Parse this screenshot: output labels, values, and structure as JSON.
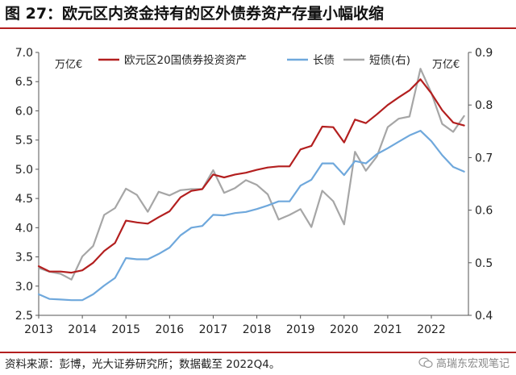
{
  "figure": {
    "title": "图 27：欧元区内资金持有的区外债券资产存量小幅收缩",
    "source": "资料来源：彭博，光大证券研究所；数据截至 2022Q4。",
    "watermark": "高瑞东宏观笔记"
  },
  "colors": {
    "rule": "#b31f1f",
    "series_total": "#b31f1f",
    "series_long": "#6fa8dc",
    "series_short": "#a6a6a6"
  },
  "chart_data": {
    "type": "line",
    "left_unit": "万亿€",
    "right_unit": "万亿€",
    "legend_position": "top",
    "grid": false,
    "ylim_left": [
      2.5,
      7.0
    ],
    "ylim_right": [
      0.4,
      0.9
    ],
    "xlim": [
      2013.0,
      2022.85
    ],
    "yticks_left": [
      "7.0",
      "6.5",
      "6.0",
      "5.5",
      "5.0",
      "4.5",
      "4.0",
      "3.5",
      "3.0",
      "2.5"
    ],
    "yticks_right": [
      "0.9",
      "0.8",
      "0.7",
      "0.6",
      "0.5",
      "0.4"
    ],
    "xticks": [
      "2013",
      "2014",
      "2015",
      "2016",
      "2017",
      "2018",
      "2019",
      "2020",
      "2021",
      "2022"
    ],
    "x": [
      2013.0,
      2013.25,
      2013.5,
      2013.75,
      2014.0,
      2014.25,
      2014.5,
      2014.75,
      2015.0,
      2015.25,
      2015.5,
      2015.75,
      2016.0,
      2016.25,
      2016.5,
      2016.75,
      2017.0,
      2017.25,
      2017.5,
      2017.75,
      2018.0,
      2018.25,
      2018.5,
      2018.75,
      2019.0,
      2019.25,
      2019.5,
      2019.75,
      2020.0,
      2020.25,
      2020.5,
      2020.75,
      2021.0,
      2021.25,
      2021.5,
      2021.75,
      2022.0,
      2022.25,
      2022.5,
      2022.75
    ],
    "series": [
      {
        "name": "欧元区20国债券投资资产",
        "axis": "left",
        "values": [
          3.34,
          3.25,
          3.25,
          3.23,
          3.27,
          3.4,
          3.6,
          3.74,
          4.12,
          4.09,
          4.07,
          4.18,
          4.28,
          4.52,
          4.63,
          4.66,
          4.91,
          4.86,
          4.91,
          4.94,
          4.99,
          5.03,
          5.05,
          5.05,
          5.34,
          5.4,
          5.73,
          5.72,
          5.46,
          5.85,
          5.79,
          5.94,
          6.1,
          6.23,
          6.35,
          6.54,
          6.3,
          6.01,
          5.8,
          5.75
        ]
      },
      {
        "name": "长债",
        "axis": "left",
        "values": [
          2.86,
          2.78,
          2.77,
          2.76,
          2.76,
          2.86,
          3.01,
          3.14,
          3.48,
          3.46,
          3.46,
          3.55,
          3.66,
          3.87,
          4.0,
          4.03,
          4.22,
          4.21,
          4.25,
          4.27,
          4.32,
          4.38,
          4.45,
          4.45,
          4.72,
          4.82,
          5.1,
          5.1,
          4.9,
          5.14,
          5.1,
          5.26,
          5.36,
          5.47,
          5.58,
          5.66,
          5.48,
          5.24,
          5.04,
          4.96
        ]
      },
      {
        "name": "短债(右)",
        "axis": "right",
        "values": [
          0.49,
          0.483,
          0.479,
          0.468,
          0.512,
          0.532,
          0.591,
          0.604,
          0.641,
          0.629,
          0.597,
          0.635,
          0.628,
          0.638,
          0.64,
          0.64,
          0.676,
          0.633,
          0.642,
          0.657,
          0.648,
          0.63,
          0.582,
          0.591,
          0.602,
          0.568,
          0.637,
          0.617,
          0.573,
          0.711,
          0.675,
          0.702,
          0.758,
          0.774,
          0.778,
          0.869,
          0.823,
          0.764,
          0.749,
          0.779
        ]
      }
    ]
  }
}
